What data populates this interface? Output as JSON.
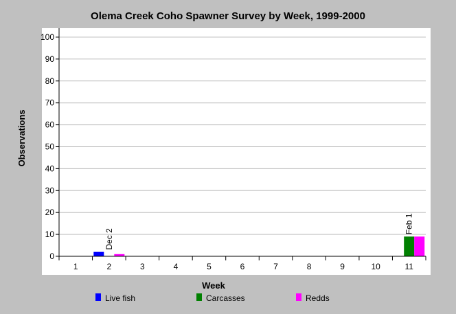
{
  "chart_data": {
    "type": "bar",
    "title": "Olema Creek Coho Spawner Survey by Week, 1999-2000",
    "xlabel": "Week",
    "ylabel": "Observations",
    "ylim": [
      0,
      100
    ],
    "yticks": [
      0,
      10,
      20,
      30,
      40,
      50,
      60,
      70,
      80,
      90,
      100
    ],
    "grid": true,
    "legend_position": "bottom",
    "categories": [
      "1",
      "2",
      "3",
      "4",
      "5",
      "6",
      "7",
      "8",
      "9",
      "10",
      "11"
    ],
    "series": [
      {
        "name": "Live fish",
        "color": "#0000ff",
        "values": [
          0,
          2,
          0,
          0,
          0,
          0,
          0,
          0,
          0,
          0,
          0
        ]
      },
      {
        "name": "Carcasses",
        "color": "#008000",
        "values": [
          0,
          0,
          0,
          0,
          0,
          0,
          0,
          0,
          0,
          0,
          9
        ]
      },
      {
        "name": "Redds",
        "color": "#ff00ff",
        "values": [
          0,
          1,
          0,
          0,
          0,
          0,
          0,
          0,
          0,
          0,
          9
        ]
      }
    ],
    "annotations": [
      {
        "category": "2",
        "text": "Dec 2"
      },
      {
        "category": "11",
        "text": "Feb 1"
      }
    ]
  }
}
